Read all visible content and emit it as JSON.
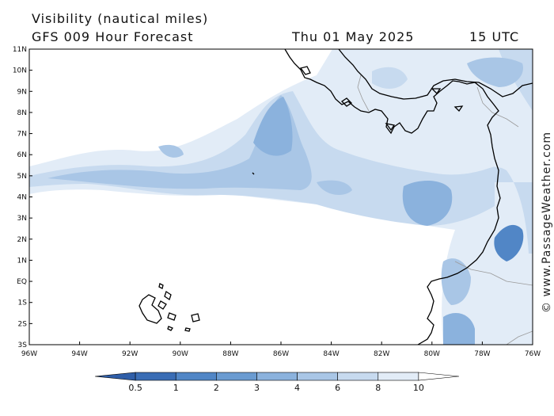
{
  "header": {
    "title_line1": "Visibility (nautical miles)",
    "title_line2": "GFS 009 Hour Forecast",
    "date": "Thu 01 May 2025",
    "time": "15 UTC"
  },
  "map": {
    "lat_labels": [
      "11N",
      "10N",
      "9N",
      "8N",
      "7N",
      "6N",
      "5N",
      "4N",
      "3N",
      "2N",
      "1N",
      "EQ",
      "1S",
      "2S",
      "3S"
    ],
    "lon_labels": [
      "96W",
      "94W",
      "92W",
      "90W",
      "88W",
      "86W",
      "84W",
      "82W",
      "80W",
      "78W",
      "76W"
    ],
    "lat_range": [
      -3,
      11
    ],
    "lon_range": [
      -96,
      -76
    ]
  },
  "colorbar": {
    "labels": [
      "0.5",
      "1",
      "2",
      "3",
      "4",
      "6",
      "8",
      "10"
    ],
    "colors": [
      "#3a6db5",
      "#5186c6",
      "#6a9bd1",
      "#8bb2dd",
      "#a9c6e6",
      "#c7daef",
      "#e2ecf7",
      "#ffffff"
    ]
  },
  "copyright": "© www.PassageWeather.com"
}
